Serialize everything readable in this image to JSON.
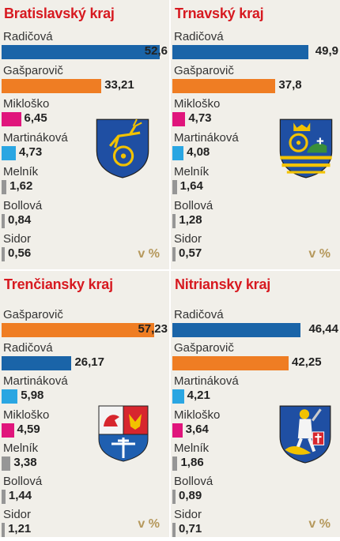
{
  "colors": {
    "Radičová": "#1a64a8",
    "Gašparovič": "#ef7d23",
    "Mikloško": "#e0157c",
    "Martináková": "#2aa6e2",
    "Melník": "#969696",
    "Bollová": "#969696",
    "Sidor": "#969696",
    "title": "#d71920",
    "unit": "#b5985c"
  },
  "chart_data": [
    {
      "type": "bar",
      "title": "Bratislavský kraj",
      "unit_label": "v %",
      "crest_icon": "bratislava-region-crest-icon",
      "categories": [
        "Radičová",
        "Gašparovič",
        "Mikloško",
        "Martináková",
        "Melník",
        "Bollová",
        "Sidor"
      ],
      "values": [
        52.6,
        33.21,
        6.45,
        4.73,
        1.62,
        0.84,
        0.56
      ],
      "value_labels": [
        "52,6",
        "33,21",
        "6,45",
        "4,73",
        "1,62",
        "0,84",
        "0,56"
      ]
    },
    {
      "type": "bar",
      "title": "Trnavský kraj",
      "unit_label": "v %",
      "crest_icon": "trnava-region-crest-icon",
      "categories": [
        "Radičová",
        "Gašparovič",
        "Mikloško",
        "Martináková",
        "Melník",
        "Bollová",
        "Sidor"
      ],
      "values": [
        49.9,
        37.8,
        4.73,
        4.08,
        1.64,
        1.28,
        0.57
      ],
      "value_labels": [
        "49,9",
        "37,8",
        "4,73",
        "4,08",
        "1,64",
        "1,28",
        "0,57"
      ]
    },
    {
      "type": "bar",
      "title": "Trenčiansky kraj",
      "unit_label": "v %",
      "crest_icon": "trencin-region-crest-icon",
      "categories": [
        "Gašparovič",
        "Radičová",
        "Martináková",
        "Mikloško",
        "Melník",
        "Bollová",
        "Sidor"
      ],
      "values": [
        57.23,
        26.17,
        5.98,
        4.59,
        3.38,
        1.44,
        1.21
      ],
      "value_labels": [
        "57,23",
        "26,17",
        "5,98",
        "4,59",
        "3,38",
        "1,44",
        "1,21"
      ]
    },
    {
      "type": "bar",
      "title": "Nitriansky kraj",
      "unit_label": "v %",
      "crest_icon": "nitra-region-crest-icon",
      "categories": [
        "Radičová",
        "Gašparovič",
        "Martináková",
        "Mikloško",
        "Melník",
        "Bollová",
        "Sidor"
      ],
      "values": [
        46.44,
        42.25,
        4.21,
        3.64,
        1.86,
        0.89,
        0.71
      ],
      "value_labels": [
        "46,44",
        "42,25",
        "4,21",
        "3,64",
        "1,86",
        "0,89",
        "0,71"
      ]
    }
  ]
}
